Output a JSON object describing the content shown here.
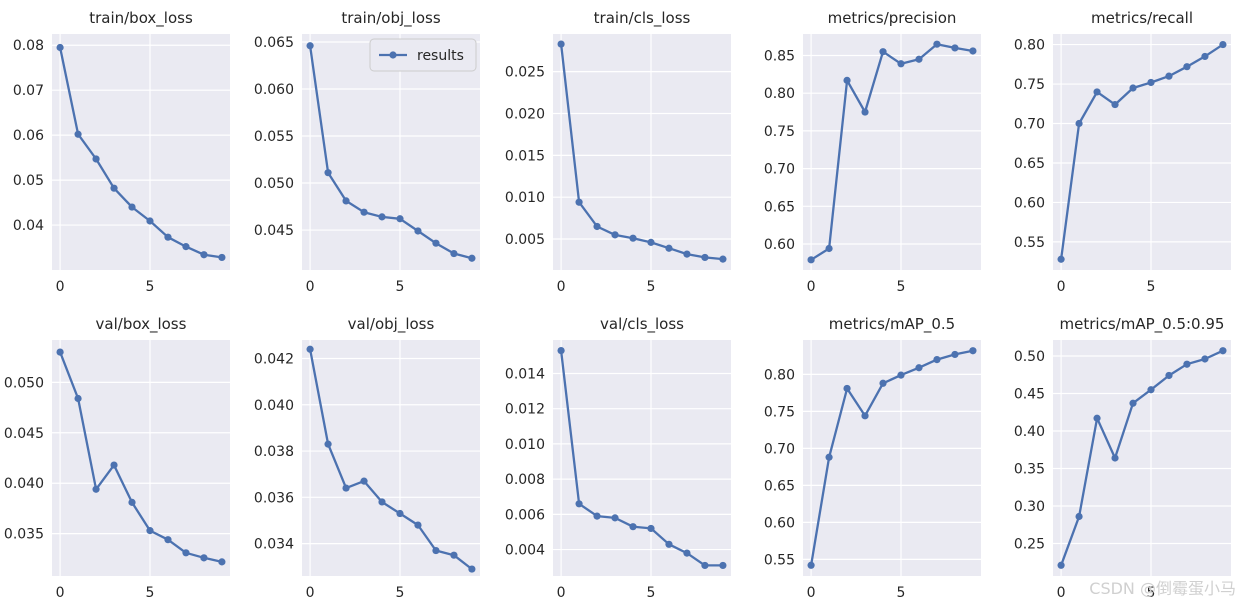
{
  "chart_data": [
    {
      "type": "line",
      "title": "train/box_loss",
      "x": [
        0,
        1,
        2,
        3,
        4,
        5,
        6,
        7,
        8,
        9
      ],
      "y": [
        0.0795,
        0.0602,
        0.0547,
        0.0482,
        0.044,
        0.0409,
        0.0373,
        0.0352,
        0.0334,
        0.0328
      ],
      "xticks": [
        0,
        5
      ],
      "yticks": [
        0.04,
        0.05,
        0.06,
        0.07,
        0.08
      ],
      "xlim": [
        -0.45,
        9.45
      ],
      "ylim": [
        0.03,
        0.0825
      ]
    },
    {
      "type": "line",
      "title": "train/obj_loss",
      "x": [
        0,
        1,
        2,
        3,
        4,
        5,
        6,
        7,
        8,
        9
      ],
      "y": [
        0.0646,
        0.0511,
        0.0481,
        0.0469,
        0.0464,
        0.0462,
        0.0449,
        0.0436,
        0.0425,
        0.042
      ],
      "xticks": [
        0,
        5
      ],
      "yticks": [
        0.045,
        0.05,
        0.055,
        0.06,
        0.065
      ],
      "xlim": [
        -0.45,
        9.45
      ],
      "ylim": [
        0.04075,
        0.06585
      ],
      "legend": {
        "position": "top-right",
        "entries": [
          "results"
        ]
      }
    },
    {
      "type": "line",
      "title": "train/cls_loss",
      "x": [
        0,
        1,
        2,
        3,
        4,
        5,
        6,
        7,
        8,
        9
      ],
      "y": [
        0.0283,
        0.0094,
        0.0065,
        0.0055,
        0.0051,
        0.0046,
        0.0039,
        0.0032,
        0.0028,
        0.0026
      ],
      "xticks": [
        0,
        5
      ],
      "yticks": [
        0.005,
        0.01,
        0.015,
        0.02,
        0.025
      ],
      "xlim": [
        -0.45,
        9.45
      ],
      "ylim": [
        0.0013,
        0.0295
      ]
    },
    {
      "type": "line",
      "title": "metrics/precision",
      "x": [
        0,
        1,
        2,
        3,
        4,
        5,
        6,
        7,
        8,
        9
      ],
      "y": [
        0.579,
        0.594,
        0.817,
        0.775,
        0.855,
        0.839,
        0.845,
        0.865,
        0.86,
        0.856
      ],
      "xticks": [
        0,
        5
      ],
      "yticks": [
        0.6,
        0.65,
        0.7,
        0.75,
        0.8,
        0.85
      ],
      "xlim": [
        -0.45,
        9.45
      ],
      "ylim": [
        0.5655,
        0.8785
      ]
    },
    {
      "type": "line",
      "title": "metrics/recall",
      "x": [
        0,
        1,
        2,
        3,
        4,
        5,
        6,
        7,
        8,
        9
      ],
      "y": [
        0.528,
        0.7,
        0.74,
        0.724,
        0.745,
        0.752,
        0.76,
        0.772,
        0.785,
        0.8
      ],
      "xticks": [
        0,
        5
      ],
      "yticks": [
        0.55,
        0.6,
        0.65,
        0.7,
        0.75,
        0.8
      ],
      "xlim": [
        -0.45,
        9.45
      ],
      "ylim": [
        0.5144,
        0.8134
      ]
    },
    {
      "type": "line",
      "title": "val/box_loss",
      "x": [
        0,
        1,
        2,
        3,
        4,
        5,
        6,
        7,
        8,
        9
      ],
      "y": [
        0.053,
        0.0484,
        0.0394,
        0.0418,
        0.0381,
        0.0353,
        0.0344,
        0.0331,
        0.0326,
        0.0322
      ],
      "xticks": [
        0,
        5
      ],
      "yticks": [
        0.035,
        0.04,
        0.045,
        0.05
      ],
      "xlim": [
        -0.45,
        9.45
      ],
      "ylim": [
        0.0308,
        0.0542
      ]
    },
    {
      "type": "line",
      "title": "val/obj_loss",
      "x": [
        0,
        1,
        2,
        3,
        4,
        5,
        6,
        7,
        8,
        9
      ],
      "y": [
        0.0424,
        0.0383,
        0.0364,
        0.0367,
        0.0358,
        0.0353,
        0.0348,
        0.0337,
        0.0335,
        0.0329
      ],
      "xticks": [
        0,
        5
      ],
      "yticks": [
        0.034,
        0.036,
        0.038,
        0.04,
        0.042
      ],
      "xlim": [
        -0.45,
        9.45
      ],
      "ylim": [
        0.0326,
        0.0428
      ]
    },
    {
      "type": "line",
      "title": "val/cls_loss",
      "x": [
        0,
        1,
        2,
        3,
        4,
        5,
        6,
        7,
        8,
        9
      ],
      "y": [
        0.0153,
        0.0066,
        0.0059,
        0.0058,
        0.0053,
        0.0052,
        0.0043,
        0.0038,
        0.0031,
        0.0031
      ],
      "xticks": [
        0,
        5
      ],
      "yticks": [
        0.004,
        0.006,
        0.008,
        0.01,
        0.012,
        0.014
      ],
      "xlim": [
        -0.45,
        9.45
      ],
      "ylim": [
        0.0025,
        0.0159
      ]
    },
    {
      "type": "line",
      "title": "metrics/mAP_0.5",
      "x": [
        0,
        1,
        2,
        3,
        4,
        5,
        6,
        7,
        8,
        9
      ],
      "y": [
        0.542,
        0.688,
        0.781,
        0.744,
        0.788,
        0.799,
        0.809,
        0.82,
        0.827,
        0.832
      ],
      "xticks": [
        0,
        5
      ],
      "yticks": [
        0.55,
        0.6,
        0.65,
        0.7,
        0.75,
        0.8
      ],
      "xlim": [
        -0.45,
        9.45
      ],
      "ylim": [
        0.5275,
        0.8465
      ]
    },
    {
      "type": "line",
      "title": "metrics/mAP_0.5:0.95",
      "x": [
        0,
        1,
        2,
        3,
        4,
        5,
        6,
        7,
        8,
        9
      ],
      "y": [
        0.221,
        0.286,
        0.417,
        0.364,
        0.437,
        0.455,
        0.474,
        0.489,
        0.496,
        0.507
      ],
      "xticks": [
        0,
        5
      ],
      "yticks": [
        0.25,
        0.3,
        0.35,
        0.4,
        0.45,
        0.5
      ],
      "xlim": [
        -0.45,
        9.45
      ],
      "ylim": [
        0.2067,
        0.5213
      ]
    }
  ],
  "colors": {
    "series": "#4c72b0",
    "plot_background": "#eaeaf2",
    "grid": "#ffffff",
    "text": "#262626"
  },
  "watermark": "CSDN @倒霉蛋小马"
}
